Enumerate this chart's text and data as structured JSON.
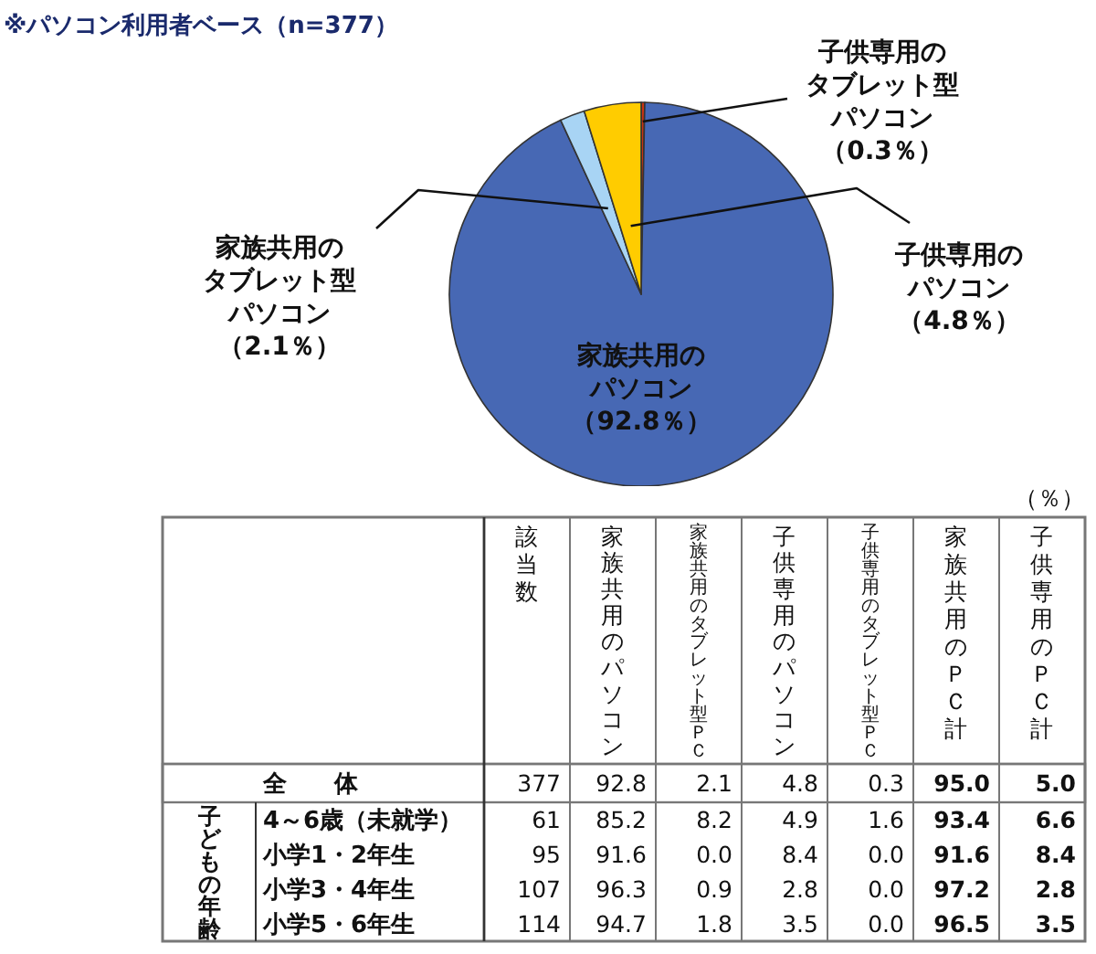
{
  "chart_data": [
    {
      "type": "pie",
      "title": "※パソコン利用者ベース（n=377）",
      "categories": [
        "子供専用のタブレット型パソコン",
        "家族共用のパソコン",
        "家族共用のタブレット型パソコン",
        "子供専用のパソコン"
      ],
      "values": [
        0.3,
        92.8,
        2.1,
        4.8
      ],
      "colors": [
        "#cc3311",
        "#4768b4",
        "#a8d4f4",
        "#ffcc00"
      ],
      "value_labels": [
        "（0.3％）",
        "（92.8％）",
        "（2.1％）",
        "（4.8％）"
      ]
    },
    {
      "type": "heatmap",
      "categories": [
        "該当数",
        "家族共用のパソコン",
        "家族共用のタブレット型ＰＣ",
        "子供専用のパソコン",
        "子供専用のタブレット型ＰＣ",
        "家族共用のＰＣ計",
        "子供専用のＰＣ計"
      ],
      "y_categories": [
        "全　　体",
        "4～6歳（未就学）",
        "小学1・2年生",
        "小学3・4年生",
        "小学5・6年生"
      ],
      "ylabel": "子どもの年齢",
      "cells": [
        [
          377,
          92.8,
          2.1,
          4.8,
          0.3,
          95.0,
          5.0
        ],
        [
          61,
          85.2,
          8.2,
          4.9,
          1.6,
          93.4,
          6.6
        ],
        [
          95,
          91.6,
          0.0,
          8.4,
          0.0,
          91.6,
          8.4
        ],
        [
          107,
          96.3,
          0.9,
          2.8,
          0.0,
          97.2,
          2.8
        ],
        [
          114,
          94.7,
          1.8,
          3.5,
          0.0,
          96.5,
          3.5
        ]
      ],
      "cell_labels": [
        [
          "377",
          "92.8",
          "2.1",
          "4.8",
          "0.3",
          "95.0",
          "5.0"
        ],
        [
          "61",
          "85.2",
          "8.2",
          "4.9",
          "1.6",
          "93.4",
          "6.6"
        ],
        [
          "95",
          "91.6",
          "0.0",
          "8.4",
          "0.0",
          "91.6",
          "8.4"
        ],
        [
          "107",
          "96.3",
          "0.9",
          "2.8",
          "0.0",
          "97.2",
          "2.8"
        ],
        [
          "114",
          "94.7",
          "1.8",
          "3.5",
          "0.0",
          "96.5",
          "3.5"
        ]
      ],
      "data_labels": true,
      "annotations": [
        "（％）"
      ]
    }
  ]
}
